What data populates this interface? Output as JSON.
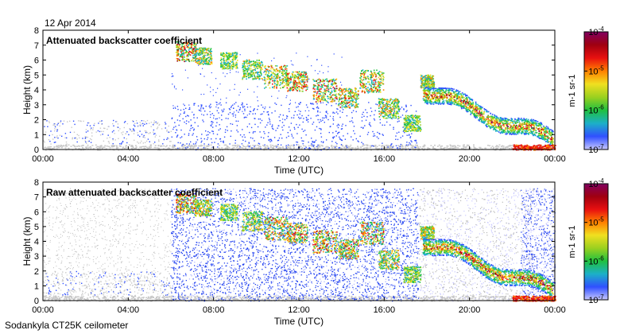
{
  "date": "12 Apr 2014",
  "footer": "Sodankyla CT25K ceilometer",
  "chart_data": [
    {
      "type": "heatmap",
      "title": "Attenuated backscatter coefficient",
      "xlabel": "Time (UTC)",
      "ylabel": "Height (km)",
      "x_ticks": [
        "00:00",
        "04:00",
        "08:00",
        "12:00",
        "16:00",
        "20:00",
        "00:00"
      ],
      "y_ticks": [
        "0",
        "1",
        "2",
        "3",
        "4",
        "5",
        "6",
        "7",
        "8"
      ],
      "xlim": [
        0,
        24
      ],
      "ylim": [
        0,
        8
      ],
      "colorbar": {
        "unit": "m-1 sr-1",
        "ticks": [
          "10-7",
          "10-6",
          "10-5",
          "10-4"
        ],
        "scale": "log",
        "range": [
          1e-07,
          0.0001
        ]
      }
    },
    {
      "type": "heatmap",
      "title": "Raw attenuated backscatter coefficient",
      "xlabel": "Time (UTC)",
      "ylabel": "Height (km)",
      "x_ticks": [
        "00:00",
        "04:00",
        "08:00",
        "12:00",
        "16:00",
        "20:00",
        "00:00"
      ],
      "y_ticks": [
        "0",
        "1",
        "2",
        "3",
        "4",
        "5",
        "6",
        "7",
        "8"
      ],
      "xlim": [
        0,
        24
      ],
      "ylim": [
        0,
        8
      ],
      "colorbar": {
        "unit": "m-1 sr-1",
        "ticks": [
          "10-7",
          "10-6",
          "10-5",
          "10-4"
        ],
        "scale": "log",
        "range": [
          1e-07,
          0.0001
        ]
      }
    }
  ]
}
